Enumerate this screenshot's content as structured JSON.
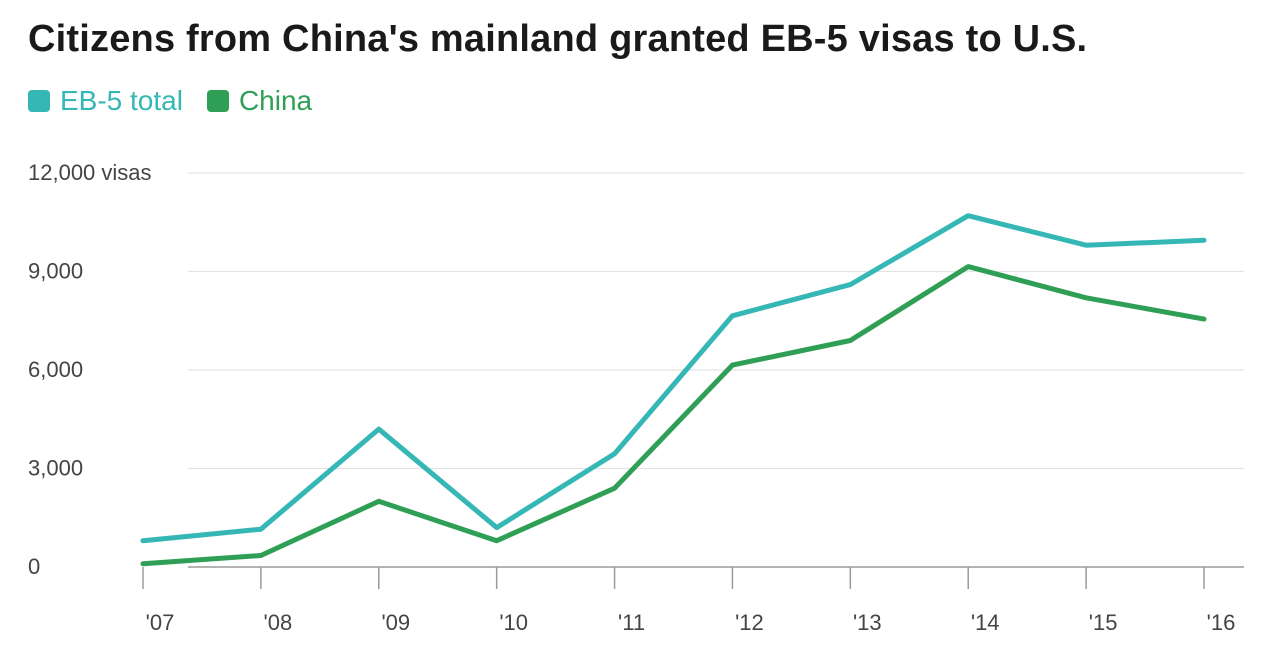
{
  "title": "Citizens from China's mainland granted EB-5 visas to U.S.",
  "legend": [
    {
      "name": "EB-5 total",
      "color": "#35B7B5"
    },
    {
      "name": "China",
      "color": "#2F9F56"
    }
  ],
  "chart_data": {
    "type": "line",
    "title": "Citizens from China's mainland granted EB-5 visas to U.S.",
    "x": [
      "'07",
      "'08",
      "'09",
      "'10",
      "'11",
      "'12",
      "'13",
      "'14",
      "'15",
      "'16"
    ],
    "series": [
      {
        "name": "EB-5 total",
        "color": "#35B7B5",
        "values": [
          800,
          1150,
          4200,
          1200,
          3450,
          7650,
          8600,
          10700,
          9800,
          9950
        ]
      },
      {
        "name": "China",
        "color": "#2F9F56",
        "values": [
          100,
          350,
          2000,
          800,
          2400,
          6150,
          6900,
          9150,
          8200,
          7550
        ]
      }
    ],
    "yticks": [
      0,
      3000,
      6000,
      9000,
      12000
    ],
    "ytick_labels": [
      "0",
      "3,000",
      "6,000",
      "9,000",
      "12,000 visas"
    ],
    "ylim": [
      0,
      12000
    ],
    "xlabel": "",
    "ylabel": "",
    "grid": true,
    "legend_position": "top-left"
  }
}
